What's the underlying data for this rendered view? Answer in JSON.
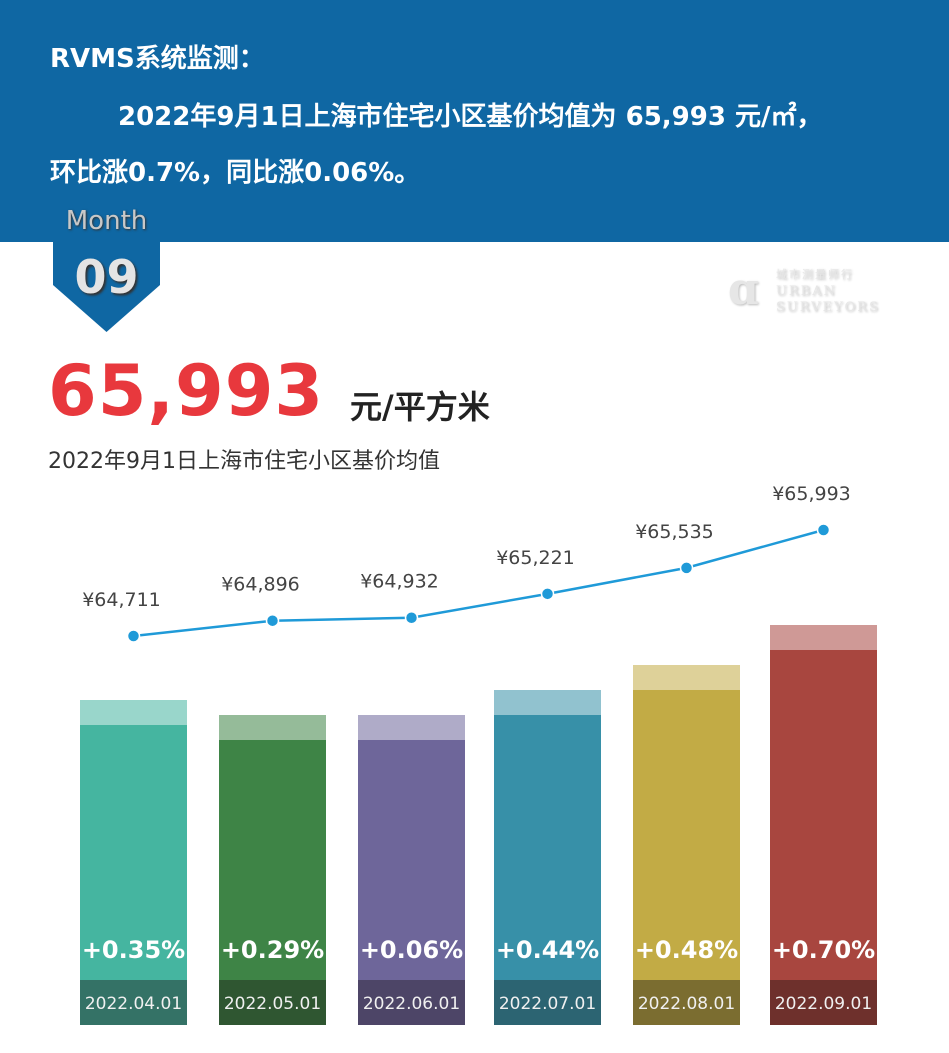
{
  "header": {
    "line1": "RVMS系统监测：",
    "line2": "2022年9月1日上海市住宅小区基价均值为  65,993 元/㎡，",
    "line3": "环比涨0.7%，同比涨0.06%。"
  },
  "badge": {
    "label": "Month",
    "number": "09"
  },
  "logo": {
    "cn": "城市测量师行",
    "line1": "URBAN",
    "line2": "SURVEYORS"
  },
  "headline": {
    "value": "65,993",
    "unit": "元/平方米",
    "caption": "2022年9月1日上海市住宅小区基价均值"
  },
  "chart_data": {
    "type": "bar",
    "categories": [
      "2022.04.01",
      "2022.05.01",
      "2022.06.01",
      "2022.07.01",
      "2022.08.01",
      "2022.09.01"
    ],
    "values": [
      64711,
      64896,
      64932,
      65221,
      65535,
      65993
    ],
    "value_labels": [
      "¥64,711",
      "¥64,896",
      "¥64,932",
      "¥65,221",
      "¥65,535",
      "¥65,993"
    ],
    "changes": [
      "+0.35%",
      "+0.29%",
      "+0.06%",
      "+0.44%",
      "+0.48%",
      "+0.70%"
    ],
    "colors": [
      "#45b5a0",
      "#3e8446",
      "#6e669a",
      "#3790a8",
      "#c2ab45",
      "#a8463f"
    ],
    "date_colors": [
      "#347266",
      "#2f5631",
      "#4d4567",
      "#2c6472",
      "#7b6d30",
      "#6e302c"
    ],
    "line_color": "#1f9ad8"
  }
}
